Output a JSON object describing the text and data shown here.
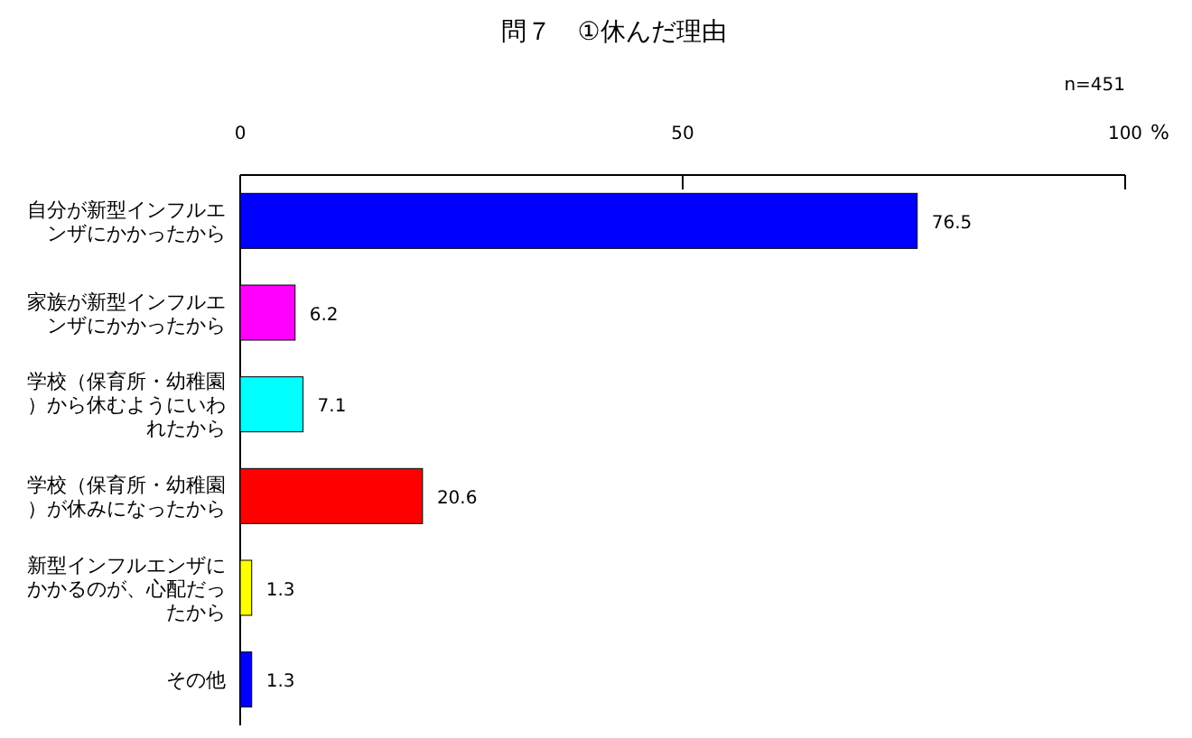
{
  "chart_data": {
    "type": "bar",
    "orientation": "horizontal",
    "title": "問７　①休んだ理由",
    "xlabel": "%",
    "annotations": [
      "n=451"
    ],
    "categories": [
      "自分が新型インフルエンザにかかったから",
      "家族が新型インフルエンザにかかったから",
      "学校（保育所・幼稚園）から休むようにいわれたから",
      "学校（保育所・幼稚園）が休みになったから",
      "新型インフルエンザにかかるのが、心配だったから",
      "その他"
    ],
    "values": [
      76.5,
      6.2,
      7.1,
      20.6,
      1.3,
      1.3
    ],
    "colors": [
      "#0000ff",
      "#ff00ff",
      "#00ffff",
      "#ff0000",
      "#ffff00",
      "#0000ff"
    ],
    "xlim": [
      0,
      100
    ],
    "xticks": [
      0,
      50,
      100
    ],
    "data_labels": true,
    "grid": false
  }
}
